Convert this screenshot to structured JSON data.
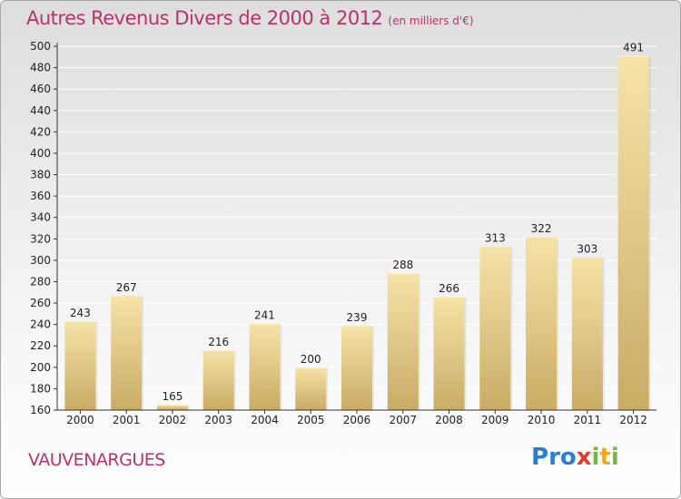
{
  "header": {
    "title": "Autres Revenus Divers de 2000 à 2012",
    "subtitle": "(en milliers d'€)"
  },
  "footer": {
    "commune": "VAUVENARGUES",
    "logo_letters": [
      "P",
      "r",
      "o",
      "x",
      "i",
      "t",
      "i"
    ]
  },
  "colors": {
    "title": "#b8336a",
    "bar_top": "#f6e3a8",
    "bar_bottom": "#c9ac65",
    "axis": "#333333",
    "grid": "#ffffff",
    "logo": [
      "#2a7fd4",
      "#2a7fd4",
      "#2a7fd4",
      "#e33b2c",
      "#74b843",
      "#f2a81d",
      "#74b843"
    ]
  },
  "chart_data": {
    "type": "bar",
    "title": "Autres Revenus Divers de 2000 à 2012",
    "subtitle": "(en milliers d'€)",
    "categories": [
      "2000",
      "2001",
      "2002",
      "2003",
      "2004",
      "2005",
      "2006",
      "2007",
      "2008",
      "2009",
      "2010",
      "2011",
      "2012"
    ],
    "values": [
      243,
      267,
      165,
      216,
      241,
      200,
      239,
      288,
      266,
      313,
      322,
      303,
      491
    ],
    "ylim": [
      160,
      500
    ],
    "yticks": [
      160,
      180,
      200,
      220,
      240,
      260,
      280,
      300,
      320,
      340,
      360,
      380,
      400,
      420,
      440,
      460,
      480,
      500
    ],
    "grid": true,
    "data_labels": true
  }
}
